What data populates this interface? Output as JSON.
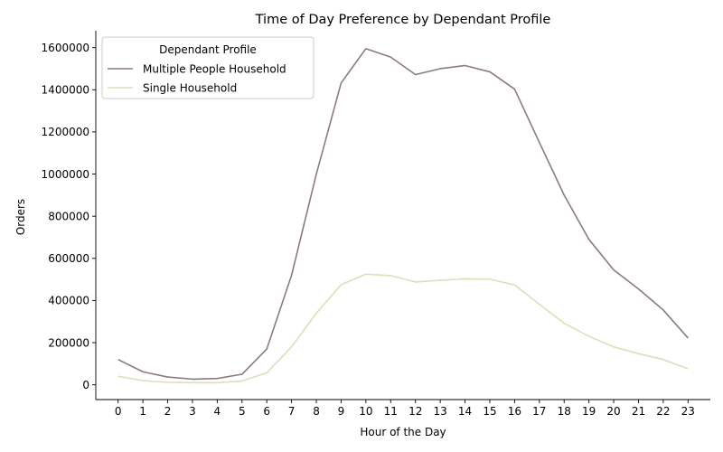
{
  "chart_data": {
    "type": "line",
    "title": "Time of Day Preference by Dependant Profile",
    "xlabel": "Hour of the Day",
    "ylabel": "Orders",
    "x": [
      0,
      1,
      2,
      3,
      4,
      5,
      6,
      7,
      8,
      9,
      10,
      11,
      12,
      13,
      14,
      15,
      16,
      17,
      18,
      19,
      20,
      21,
      22,
      23
    ],
    "xticks": [
      "0",
      "1",
      "2",
      "3",
      "4",
      "5",
      "6",
      "7",
      "8",
      "9",
      "10",
      "11",
      "12",
      "13",
      "14",
      "15",
      "16",
      "17",
      "18",
      "19",
      "20",
      "21",
      "22",
      "23"
    ],
    "yticks": [
      "0",
      "200000",
      "400000",
      "600000",
      "800000",
      "1000000",
      "1200000",
      "1400000",
      "1600000"
    ],
    "ylim": [
      -70000,
      1680000
    ],
    "xlim": [
      -0.9,
      23.9
    ],
    "grid": false,
    "legend": {
      "title": "Dependant Profile",
      "placement": "top-left"
    },
    "series": [
      {
        "name": "Multiple People Household",
        "color": "#8c7b7b",
        "values": [
          120000,
          62000,
          37000,
          27000,
          30000,
          50000,
          170000,
          520000,
          1000000,
          1432000,
          1595000,
          1555000,
          1472000,
          1500000,
          1515000,
          1485000,
          1403000,
          1150000,
          900000,
          690000,
          545000,
          455000,
          355000,
          222000
        ]
      },
      {
        "name": "Single Household",
        "color": "#dcdfb9",
        "values": [
          40000,
          20000,
          12000,
          10000,
          10000,
          18000,
          57000,
          180000,
          340000,
          475000,
          525000,
          518000,
          488000,
          496000,
          503000,
          501000,
          474000,
          382000,
          292000,
          230000,
          180000,
          148000,
          120000,
          76000
        ]
      }
    ]
  }
}
